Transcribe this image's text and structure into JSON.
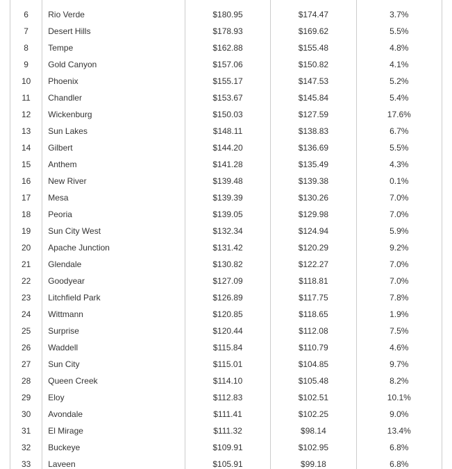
{
  "table": {
    "text_color": "#333333",
    "border_color": "#cccccc",
    "background_color": "#ffffff",
    "font_size_pt": 9,
    "columns": [
      "rank",
      "city",
      "value_current",
      "value_prior",
      "pct_change"
    ],
    "column_align": [
      "center",
      "left",
      "center",
      "center",
      "center"
    ],
    "rows": [
      {
        "rank": "",
        "city": "",
        "val1": "",
        "val2": "",
        "pct": ""
      },
      {
        "rank": "6",
        "city": "Rio Verde",
        "val1": "$180.95",
        "val2": "$174.47",
        "pct": "3.7%"
      },
      {
        "rank": "7",
        "city": "Desert Hills",
        "val1": "$178.93",
        "val2": "$169.62",
        "pct": "5.5%"
      },
      {
        "rank": "8",
        "city": "Tempe",
        "val1": "$162.88",
        "val2": "$155.48",
        "pct": "4.8%"
      },
      {
        "rank": "9",
        "city": "Gold Canyon",
        "val1": "$157.06",
        "val2": "$150.82",
        "pct": "4.1%"
      },
      {
        "rank": "10",
        "city": "Phoenix",
        "val1": "$155.17",
        "val2": "$147.53",
        "pct": "5.2%"
      },
      {
        "rank": "11",
        "city": "Chandler",
        "val1": "$153.67",
        "val2": "$145.84",
        "pct": "5.4%"
      },
      {
        "rank": "12",
        "city": "Wickenburg",
        "val1": "$150.03",
        "val2": "$127.59",
        "pct": "17.6%"
      },
      {
        "rank": "13",
        "city": "Sun Lakes",
        "val1": "$148.11",
        "val2": "$138.83",
        "pct": "6.7%"
      },
      {
        "rank": "14",
        "city": "Gilbert",
        "val1": "$144.20",
        "val2": "$136.69",
        "pct": "5.5%"
      },
      {
        "rank": "15",
        "city": "Anthem",
        "val1": "$141.28",
        "val2": "$135.49",
        "pct": "4.3%"
      },
      {
        "rank": "16",
        "city": "New River",
        "val1": "$139.48",
        "val2": "$139.38",
        "pct": "0.1%"
      },
      {
        "rank": "17",
        "city": "Mesa",
        "val1": "$139.39",
        "val2": "$130.26",
        "pct": "7.0%"
      },
      {
        "rank": "18",
        "city": "Peoria",
        "val1": "$139.05",
        "val2": "$129.98",
        "pct": "7.0%"
      },
      {
        "rank": "19",
        "city": "Sun City West",
        "val1": "$132.34",
        "val2": "$124.94",
        "pct": "5.9%"
      },
      {
        "rank": "20",
        "city": "Apache Junction",
        "val1": "$131.42",
        "val2": "$120.29",
        "pct": "9.2%"
      },
      {
        "rank": "21",
        "city": "Glendale",
        "val1": "$130.82",
        "val2": "$122.27",
        "pct": "7.0%"
      },
      {
        "rank": "22",
        "city": "Goodyear",
        "val1": "$127.09",
        "val2": "$118.81",
        "pct": "7.0%"
      },
      {
        "rank": "23",
        "city": "Litchfield Park",
        "val1": "$126.89",
        "val2": "$117.75",
        "pct": "7.8%"
      },
      {
        "rank": "24",
        "city": "Wittmann",
        "val1": "$120.85",
        "val2": "$118.65",
        "pct": "1.9%"
      },
      {
        "rank": "25",
        "city": "Surprise",
        "val1": "$120.44",
        "val2": "$112.08",
        "pct": "7.5%"
      },
      {
        "rank": "26",
        "city": "Waddell",
        "val1": "$115.84",
        "val2": "$110.79",
        "pct": "4.6%"
      },
      {
        "rank": "27",
        "city": "Sun City",
        "val1": "$115.01",
        "val2": "$104.85",
        "pct": "9.7%"
      },
      {
        "rank": "28",
        "city": "Queen Creek",
        "val1": "$114.10",
        "val2": "$105.48",
        "pct": "8.2%"
      },
      {
        "rank": "29",
        "city": "Eloy",
        "val1": "$112.83",
        "val2": "$102.51",
        "pct": "10.1%"
      },
      {
        "rank": "30",
        "city": "Avondale",
        "val1": "$111.41",
        "val2": "$102.25",
        "pct": "9.0%"
      },
      {
        "rank": "31",
        "city": "El Mirage",
        "val1": "$111.32",
        "val2": "$98.14",
        "pct": "13.4%"
      },
      {
        "rank": "32",
        "city": "Buckeye",
        "val1": "$109.91",
        "val2": "$102.95",
        "pct": "6.8%"
      },
      {
        "rank": "33",
        "city": "Laveen",
        "val1": "$105.91",
        "val2": "$99.18",
        "pct": "6.8%"
      }
    ]
  }
}
